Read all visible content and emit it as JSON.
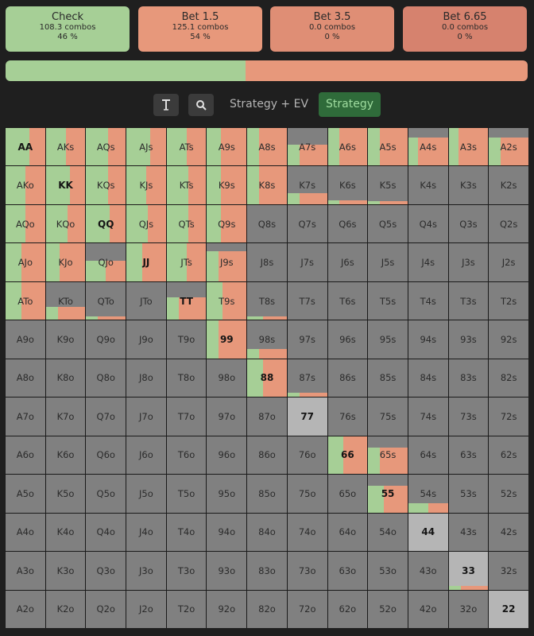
{
  "colors": {
    "check": "#a6cf96",
    "bet_small": "#e7987b",
    "bet_mid": "#df8e75",
    "bet_large": "#d6826e",
    "inactive_cell": "#808080",
    "light_cell": "#b5b5b5"
  },
  "actions": [
    {
      "name": "Check",
      "combos": "108.3 combos",
      "pct": "46 %",
      "color": "#a6cf96"
    },
    {
      "name": "Bet 1.5",
      "combos": "125.1 combos",
      "pct": "54 %",
      "color": "#e7987b"
    },
    {
      "name": "Bet 3.5",
      "combos": "0.0 combos",
      "pct": "0 %",
      "color": "#df8e75"
    },
    {
      "name": "Bet 6.65",
      "combos": "0.0 combos",
      "pct": "0 %",
      "color": "#d6826e"
    }
  ],
  "overall_frequency": {
    "check": 0.46,
    "bet": 0.54
  },
  "toolbar": {
    "filter_icon": "text-cursor-icon",
    "search_icon": "search-icon",
    "tab_strategy_ev": "Strategy + EV",
    "tab_strategy": "Strategy"
  },
  "grid": {
    "rows": [
      [
        "AA",
        "AKs",
        "AQs",
        "AJs",
        "ATs",
        "A9s",
        "A8s",
        "A7s",
        "A6s",
        "A5s",
        "A4s",
        "A3s",
        "A2s"
      ],
      [
        "AKo",
        "KK",
        "KQs",
        "KJs",
        "KTs",
        "K9s",
        "K8s",
        "K7s",
        "K6s",
        "K5s",
        "K4s",
        "K3s",
        "K2s"
      ],
      [
        "AQo",
        "KQo",
        "QQ",
        "QJs",
        "QTs",
        "Q9s",
        "Q8s",
        "Q7s",
        "Q6s",
        "Q5s",
        "Q4s",
        "Q3s",
        "Q2s"
      ],
      [
        "AJo",
        "KJo",
        "QJo",
        "JJ",
        "JTs",
        "J9s",
        "J8s",
        "J7s",
        "J6s",
        "J5s",
        "J4s",
        "J3s",
        "J2s"
      ],
      [
        "ATo",
        "KTo",
        "QTo",
        "JTo",
        "TT",
        "T9s",
        "T8s",
        "T7s",
        "T6s",
        "T5s",
        "T4s",
        "T3s",
        "T2s"
      ],
      [
        "A9o",
        "K9o",
        "Q9o",
        "J9o",
        "T9o",
        "99",
        "98s",
        "97s",
        "96s",
        "95s",
        "94s",
        "93s",
        "92s"
      ],
      [
        "A8o",
        "K8o",
        "Q8o",
        "J8o",
        "T8o",
        "98o",
        "88",
        "87s",
        "86s",
        "85s",
        "84s",
        "83s",
        "82s"
      ],
      [
        "A7o",
        "K7o",
        "Q7o",
        "J7o",
        "T7o",
        "97o",
        "87o",
        "77",
        "76s",
        "75s",
        "74s",
        "73s",
        "72s"
      ],
      [
        "A6o",
        "K6o",
        "Q6o",
        "J6o",
        "T6o",
        "96o",
        "86o",
        "76o",
        "66",
        "65s",
        "64s",
        "63s",
        "62s"
      ],
      [
        "A5o",
        "K5o",
        "Q5o",
        "J5o",
        "T5o",
        "95o",
        "85o",
        "75o",
        "65o",
        "55",
        "54s",
        "53s",
        "52s"
      ],
      [
        "A4o",
        "K4o",
        "Q4o",
        "J4o",
        "T4o",
        "94o",
        "84o",
        "74o",
        "64o",
        "54o",
        "44",
        "43s",
        "42s"
      ],
      [
        "A3o",
        "K3o",
        "Q3o",
        "J3o",
        "T3o",
        "93o",
        "83o",
        "73o",
        "63o",
        "53o",
        "43o",
        "33",
        "32s"
      ],
      [
        "A2o",
        "K2o",
        "Q2o",
        "J2o",
        "T2o",
        "92o",
        "82o",
        "72o",
        "62o",
        "52o",
        "42o",
        "32o",
        "22"
      ]
    ],
    "strategy": {
      "AA": [
        0.6,
        0.4,
        1.0
      ],
      "AKs": [
        0.5,
        0.5,
        1.0
      ],
      "AQs": [
        0.55,
        0.45,
        1.0
      ],
      "AJs": [
        0.6,
        0.4,
        1.0
      ],
      "ATs": [
        0.5,
        0.5,
        1.0
      ],
      "A9s": [
        0.35,
        0.65,
        1.0
      ],
      "A8s": [
        0.3,
        0.7,
        1.0
      ],
      "A7s": [
        0.3,
        0.7,
        0.55
      ],
      "A6s": [
        0.3,
        0.7,
        1.0
      ],
      "A5s": [
        0.3,
        0.7,
        1.0
      ],
      "A4s": [
        0.25,
        0.75,
        0.75
      ],
      "A3s": [
        0.25,
        0.75,
        1.0
      ],
      "A2s": [
        0.3,
        0.7,
        0.75
      ],
      "AKo": [
        0.5,
        0.5,
        1.0
      ],
      "KK": [
        0.6,
        0.4,
        1.0
      ],
      "KQs": [
        0.55,
        0.45,
        1.0
      ],
      "KJs": [
        0.5,
        0.5,
        1.0
      ],
      "KTs": [
        0.55,
        0.45,
        1.0
      ],
      "K9s": [
        0.35,
        0.65,
        1.0
      ],
      "K8s": [
        0.3,
        0.7,
        1.0
      ],
      "K7s": [
        0.3,
        0.7,
        0.3
      ],
      "K6s": [
        0.3,
        0.7,
        0.1
      ],
      "K5s": [
        0.3,
        0.7,
        0.08
      ],
      "AQo": [
        0.5,
        0.5,
        1.0
      ],
      "KQo": [
        0.55,
        0.45,
        1.0
      ],
      "QQ": [
        0.6,
        0.4,
        1.0
      ],
      "QJs": [
        0.55,
        0.45,
        1.0
      ],
      "QTs": [
        0.55,
        0.45,
        1.0
      ],
      "Q9s": [
        0.35,
        0.65,
        1.0
      ],
      "AJo": [
        0.4,
        0.6,
        1.0
      ],
      "KJo": [
        0.35,
        0.65,
        1.0
      ],
      "QJo": [
        0.5,
        0.5,
        0.55
      ],
      "JJ": [
        0.4,
        0.6,
        1.0
      ],
      "JTs": [
        0.5,
        0.5,
        1.0
      ],
      "J9s": [
        0.3,
        0.7,
        0.8
      ],
      "ATo": [
        0.4,
        0.6,
        1.0
      ],
      "KTo": [
        0.3,
        0.7,
        0.35
      ],
      "QTo": [
        0.3,
        0.7,
        0.1
      ],
      "TT": [
        0.3,
        0.7,
        0.6
      ],
      "T9s": [
        0.4,
        0.6,
        1.0
      ],
      "T8s": [
        0.4,
        0.6,
        0.1
      ],
      "99": [
        0.3,
        0.7,
        1.0
      ],
      "98s": [
        0.3,
        0.7,
        0.25
      ],
      "88": [
        0.4,
        0.6,
        1.0
      ],
      "87s": [
        0.3,
        0.7,
        0.1
      ],
      "66": [
        0.4,
        0.6,
        1.0
      ],
      "65s": [
        0.3,
        0.7,
        0.7
      ],
      "55": [
        0.4,
        0.6,
        0.7
      ],
      "54s": [
        0.5,
        0.5,
        0.25
      ],
      "33": [
        0.3,
        0.7,
        0.1
      ],
      "98o": [
        0.0,
        1.0,
        0.0
      ]
    }
  }
}
